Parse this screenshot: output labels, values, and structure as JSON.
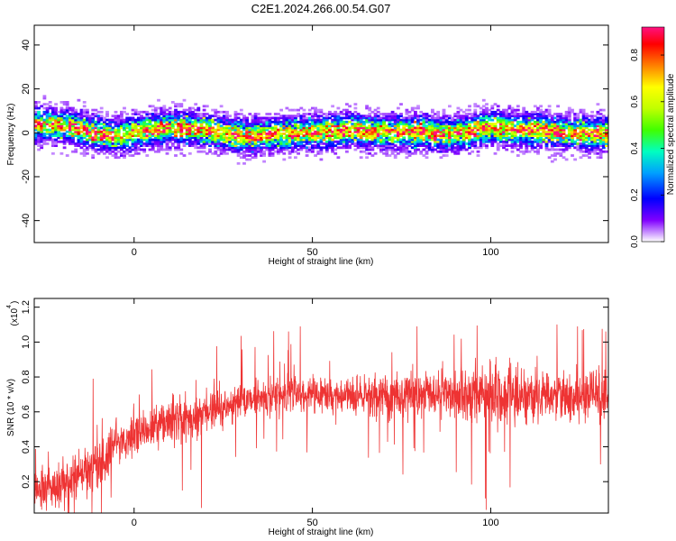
{
  "title": "C2E1.2024.266.00.54.G07",
  "chart_data": [
    {
      "type": "heatmap",
      "xlabel": "Height of straight line (km)",
      "ylabel": "Frequency (Hz)",
      "xlim": [
        -28,
        133
      ],
      "ylim": [
        -50,
        49
      ],
      "xticks": [
        0,
        50,
        100
      ],
      "yticks": [
        -40,
        -20,
        0,
        20,
        40
      ],
      "xtick_labels": [
        "0",
        "50",
        "100"
      ],
      "ytick_labels": [
        "-40",
        "-20",
        "0",
        "20",
        "40"
      ],
      "colorbar": {
        "label": "Normalized spectral amplitude",
        "range": [
          0.0,
          0.92
        ],
        "ticks": [
          0.0,
          0.2,
          0.4,
          0.6,
          0.8
        ],
        "tick_labels": [
          "0.0",
          "0.2",
          "0.4",
          "0.6",
          "0.8"
        ]
      },
      "ridge": {
        "x": [
          -28,
          -20,
          -12,
          -5,
          0,
          10,
          20,
          30,
          40,
          50,
          60,
          70,
          80,
          88,
          92,
          100,
          110,
          120,
          133
        ],
        "y": [
          3,
          3,
          0,
          -2,
          0,
          2,
          1,
          -2,
          -1,
          0,
          1,
          0,
          0,
          -1,
          0,
          2,
          1,
          0,
          -1
        ]
      }
    },
    {
      "type": "line",
      "xlabel": "Height of straight line (km)",
      "ylabel": "SNR (10 * v/v)",
      "y_multiplier": "(x10",
      "y_multiplier_exp": "4",
      "xlim": [
        -28,
        133
      ],
      "ylim": [
        0.02,
        1.25
      ],
      "xticks": [
        0,
        50,
        100
      ],
      "yticks": [
        0.2,
        0.4,
        0.6,
        0.8,
        1.0,
        1.2
      ],
      "xtick_labels": [
        "0",
        "50",
        "100"
      ],
      "ytick_labels": [
        "0.2",
        "0.4",
        "0.6",
        "0.8",
        "1.0",
        "1.2"
      ],
      "color": "#ee3333",
      "envelope": {
        "x": [
          -28,
          -20,
          -10,
          0,
          10,
          15,
          20,
          25,
          30,
          50,
          70,
          90,
          100,
          110,
          120,
          133
        ],
        "mean": [
          0.15,
          0.18,
          0.3,
          0.48,
          0.55,
          0.55,
          0.58,
          0.62,
          0.67,
          0.7,
          0.69,
          0.7,
          0.7,
          0.69,
          0.69,
          0.68
        ],
        "spread": [
          0.09,
          0.1,
          0.13,
          0.11,
          0.11,
          0.12,
          0.13,
          0.11,
          0.09,
          0.09,
          0.1,
          0.12,
          0.15,
          0.14,
          0.13,
          0.13
        ]
      }
    }
  ]
}
